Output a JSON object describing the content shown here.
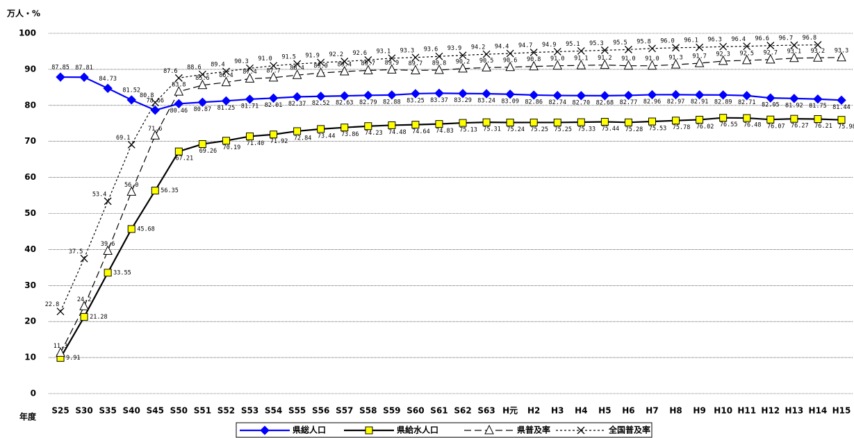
{
  "chart_data": {
    "type": "line",
    "y_label": "万人・%",
    "x_label": "年度",
    "categories": [
      "S25",
      "S30",
      "S35",
      "S40",
      "S45",
      "S50",
      "S51",
      "S52",
      "S53",
      "S54",
      "S55",
      "S56",
      "S57",
      "S58",
      "S59",
      "S60",
      "S61",
      "S62",
      "S63",
      "H元",
      "H2",
      "H3",
      "H4",
      "H5",
      "H6",
      "H7",
      "H8",
      "H9",
      "H10",
      "H11",
      "H12",
      "H13",
      "H14",
      "H15"
    ],
    "ylim": [
      0,
      100
    ],
    "yticks": [
      0,
      10,
      20,
      30,
      40,
      50,
      60,
      70,
      80,
      90,
      100
    ],
    "grid": true,
    "legend": "bottom",
    "series": [
      {
        "name": "県総人口",
        "color": "#0000ff",
        "marker": "diamond",
        "dash": "solid",
        "values": [
          87.85,
          87.81,
          84.73,
          81.52,
          78.66,
          80.46,
          80.87,
          81.25,
          81.71,
          82.01,
          82.37,
          82.52,
          82.63,
          82.79,
          82.88,
          83.25,
          83.37,
          83.29,
          83.24,
          83.09,
          82.86,
          82.74,
          82.7,
          82.68,
          82.77,
          82.96,
          82.97,
          82.91,
          82.89,
          82.71,
          82.05,
          81.92,
          81.75,
          81.44
        ],
        "value_labels": [
          "87.85",
          "87.81",
          "84.73",
          "81.52",
          "78.66",
          "80.46",
          "80.87",
          "81.25",
          "81.71",
          "82.01",
          "82.37",
          "82.52",
          "82.63",
          "82.79",
          "82.88",
          "83.25",
          "83.37",
          "83.29",
          "83.24",
          "83.09",
          "82.86",
          "82.74",
          "82.70",
          "82.68",
          "82.77",
          "82.96",
          "82.97",
          "82.91",
          "82.89",
          "82.71",
          "82.05",
          "81.92",
          "81.75",
          "81.44"
        ]
      },
      {
        "name": "県給水人口",
        "color": "#000000",
        "marker": "square",
        "dash": "solid",
        "values": [
          9.91,
          21.28,
          33.55,
          45.68,
          56.35,
          67.21,
          69.26,
          70.19,
          71.4,
          71.92,
          72.84,
          73.44,
          73.86,
          74.23,
          74.48,
          74.64,
          74.83,
          75.13,
          75.31,
          75.24,
          75.25,
          75.25,
          75.33,
          75.44,
          75.28,
          75.53,
          75.78,
          76.02,
          76.55,
          76.48,
          76.07,
          76.27,
          76.21,
          75.98
        ],
        "value_labels": [
          "9.91",
          "21.28",
          "33.55",
          "45.68",
          "56.35",
          "67.21",
          "69.26",
          "70.19",
          "71.40",
          "71.92",
          "72.84",
          "73.44",
          "73.86",
          "74.23",
          "74.48",
          "74.64",
          "74.83",
          "75.13",
          "75.31",
          "75.24",
          "75.25",
          "75.25",
          "75.33",
          "75.44",
          "75.28",
          "75.53",
          "75.78",
          "76.02",
          "76.55",
          "76.48",
          "76.07",
          "76.27",
          "76.21",
          "75.98"
        ]
      },
      {
        "name": "県普及率",
        "color": "#000000",
        "marker": "triangle",
        "dash": "dashed",
        "values": [
          11.3,
          24.2,
          39.6,
          56.0,
          71.6,
          83.8,
          85.6,
          86.4,
          87.4,
          87.7,
          88.4,
          89.0,
          89.4,
          89.7,
          89.9,
          89.7,
          89.8,
          90.2,
          90.5,
          90.6,
          90.8,
          91.0,
          91.1,
          91.2,
          91.0,
          91.0,
          91.3,
          91.7,
          92.3,
          92.5,
          92.7,
          93.1,
          93.2,
          93.3
        ],
        "value_labels": [
          "11.3",
          "24.2",
          "39.6",
          "56.0",
          "71.6",
          "83.8",
          "85.6",
          "86.4",
          "87.4",
          "87.7",
          "88.4",
          "89.0",
          "89.4",
          "89.7",
          "89.9",
          "89.7",
          "89.8",
          "90.2",
          "90.5",
          "90.6",
          "90.8",
          "91.0",
          "91.1",
          "91.2",
          "91.0",
          "91.0",
          "91.3",
          "91.7",
          "92.3",
          "92.5",
          "92.7",
          "93.1",
          "93.2",
          "93.3"
        ]
      },
      {
        "name": "全国普及率",
        "color": "#000000",
        "marker": "x",
        "dash": "dotted",
        "values": [
          22.8,
          37.5,
          53.4,
          69.1,
          80.8,
          87.6,
          88.6,
          89.4,
          90.3,
          91.0,
          91.5,
          91.9,
          92.2,
          92.6,
          93.1,
          93.3,
          93.6,
          93.9,
          94.2,
          94.4,
          94.7,
          94.9,
          95.1,
          95.3,
          95.5,
          95.8,
          96.0,
          96.1,
          96.3,
          96.4,
          96.6,
          96.7,
          96.8,
          null
        ],
        "value_labels": [
          "22.8",
          "37.5",
          "53.4",
          "69.1",
          "80.8",
          "87.6",
          "88.6",
          "89.4",
          "90.3",
          "91.0",
          "91.5",
          "91.9",
          "92.2",
          "92.6",
          "93.1",
          "93.3",
          "93.6",
          "93.9",
          "94.2",
          "94.4",
          "94.7",
          "94.9",
          "95.1",
          "95.3",
          "95.5",
          "95.8",
          "96.0",
          "96.1",
          "96.3",
          "96.4",
          "96.6",
          "96.7",
          "96.8",
          null
        ]
      }
    ]
  }
}
